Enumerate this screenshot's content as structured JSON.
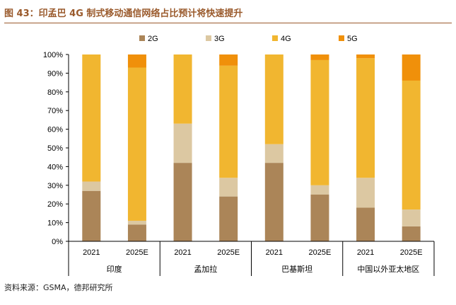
{
  "header": {
    "title": "图 43：印孟巴 4G 制式移动通信网络占比预计将快速提升"
  },
  "footer": {
    "source": "资料来源：GSMA，德邦研究所"
  },
  "colors": {
    "2G": "#ab8558",
    "3G": "#dcc8a2",
    "4G": "#f1b630",
    "5G": "#f0900a",
    "title": "#9a5a2c",
    "axis": "#000000"
  },
  "chart_data": {
    "type": "bar",
    "stacked": true,
    "title": "印孟巴 4G 制式移动通信网络占比预计将快速提升",
    "xlabel": "",
    "ylabel": "",
    "ylim": [
      0,
      100
    ],
    "y_ticks": [
      "0%",
      "10%",
      "20%",
      "30%",
      "40%",
      "50%",
      "60%",
      "70%",
      "80%",
      "90%",
      "100%"
    ],
    "legend": [
      "2G",
      "3G",
      "4G",
      "5G"
    ],
    "legend_position": "top",
    "groups": [
      "印度",
      "孟加拉",
      "巴基斯坦",
      "中国以外亚太地区"
    ],
    "categories": [
      "2021",
      "2025E",
      "2021",
      "2025E",
      "2021",
      "2025E",
      "2021",
      "2025E"
    ],
    "series": [
      {
        "name": "2G",
        "values": [
          27,
          9,
          42,
          24,
          42,
          25,
          18,
          8
        ]
      },
      {
        "name": "3G",
        "values": [
          5,
          2,
          21,
          10,
          10,
          5,
          16,
          9
        ]
      },
      {
        "name": "4G",
        "values": [
          68,
          82,
          37,
          60,
          48,
          67,
          64,
          69
        ]
      },
      {
        "name": "5G",
        "values": [
          0,
          7,
          0,
          6,
          0,
          3,
          2,
          14
        ]
      }
    ]
  }
}
